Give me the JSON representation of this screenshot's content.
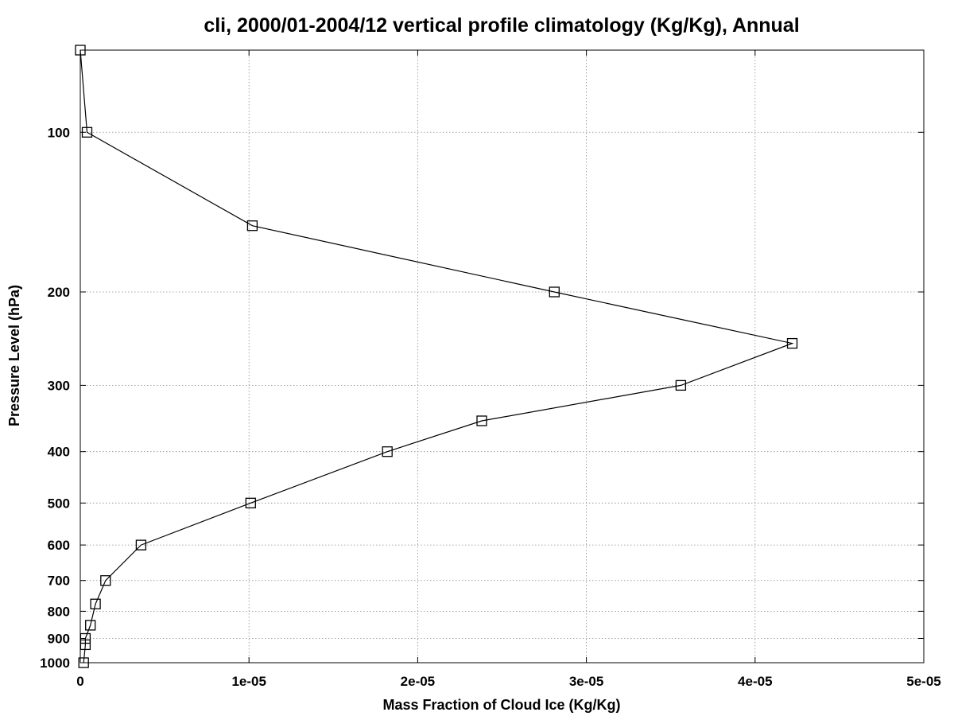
{
  "chart_data": {
    "type": "line",
    "title": "cli, 2000/01-2004/12 vertical profile climatology (Kg/Kg), Annual",
    "xlabel": "Mass Fraction of Cloud Ice (Kg/Kg)",
    "ylabel": "Pressure Level (hPa)",
    "xlim": [
      0,
      5e-05
    ],
    "ylim": [
      1000,
      70
    ],
    "y_scale": "log",
    "y_inverted": true,
    "grid": true,
    "x_ticks": [
      0,
      1e-05,
      2e-05,
      3e-05,
      4e-05,
      5e-05
    ],
    "x_tick_labels": [
      "0",
      "1e-05",
      "2e-05",
      "3e-05",
      "4e-05",
      "5e-05"
    ],
    "y_ticks": [
      100,
      200,
      300,
      400,
      500,
      600,
      700,
      800,
      900,
      1000
    ],
    "y_tick_labels": [
      "100",
      "200",
      "300",
      "400",
      "500",
      "600",
      "700",
      "800",
      "900",
      "1000"
    ],
    "marker": "open-square",
    "series": [
      {
        "points": [
          {
            "x": 0.0,
            "y": 70
          },
          {
            "x": 4e-07,
            "y": 100
          },
          {
            "x": 1.02e-05,
            "y": 150
          },
          {
            "x": 2.81e-05,
            "y": 200
          },
          {
            "x": 4.22e-05,
            "y": 250
          },
          {
            "x": 3.56e-05,
            "y": 300
          },
          {
            "x": 2.38e-05,
            "y": 350
          },
          {
            "x": 1.82e-05,
            "y": 400
          },
          {
            "x": 1.01e-05,
            "y": 500
          },
          {
            "x": 3.6e-06,
            "y": 600
          },
          {
            "x": 1.5e-06,
            "y": 700
          },
          {
            "x": 9e-07,
            "y": 775
          },
          {
            "x": 6e-07,
            "y": 850
          },
          {
            "x": 3e-07,
            "y": 900
          },
          {
            "x": 3e-07,
            "y": 925
          },
          {
            "x": 2e-07,
            "y": 1000
          }
        ]
      }
    ]
  }
}
